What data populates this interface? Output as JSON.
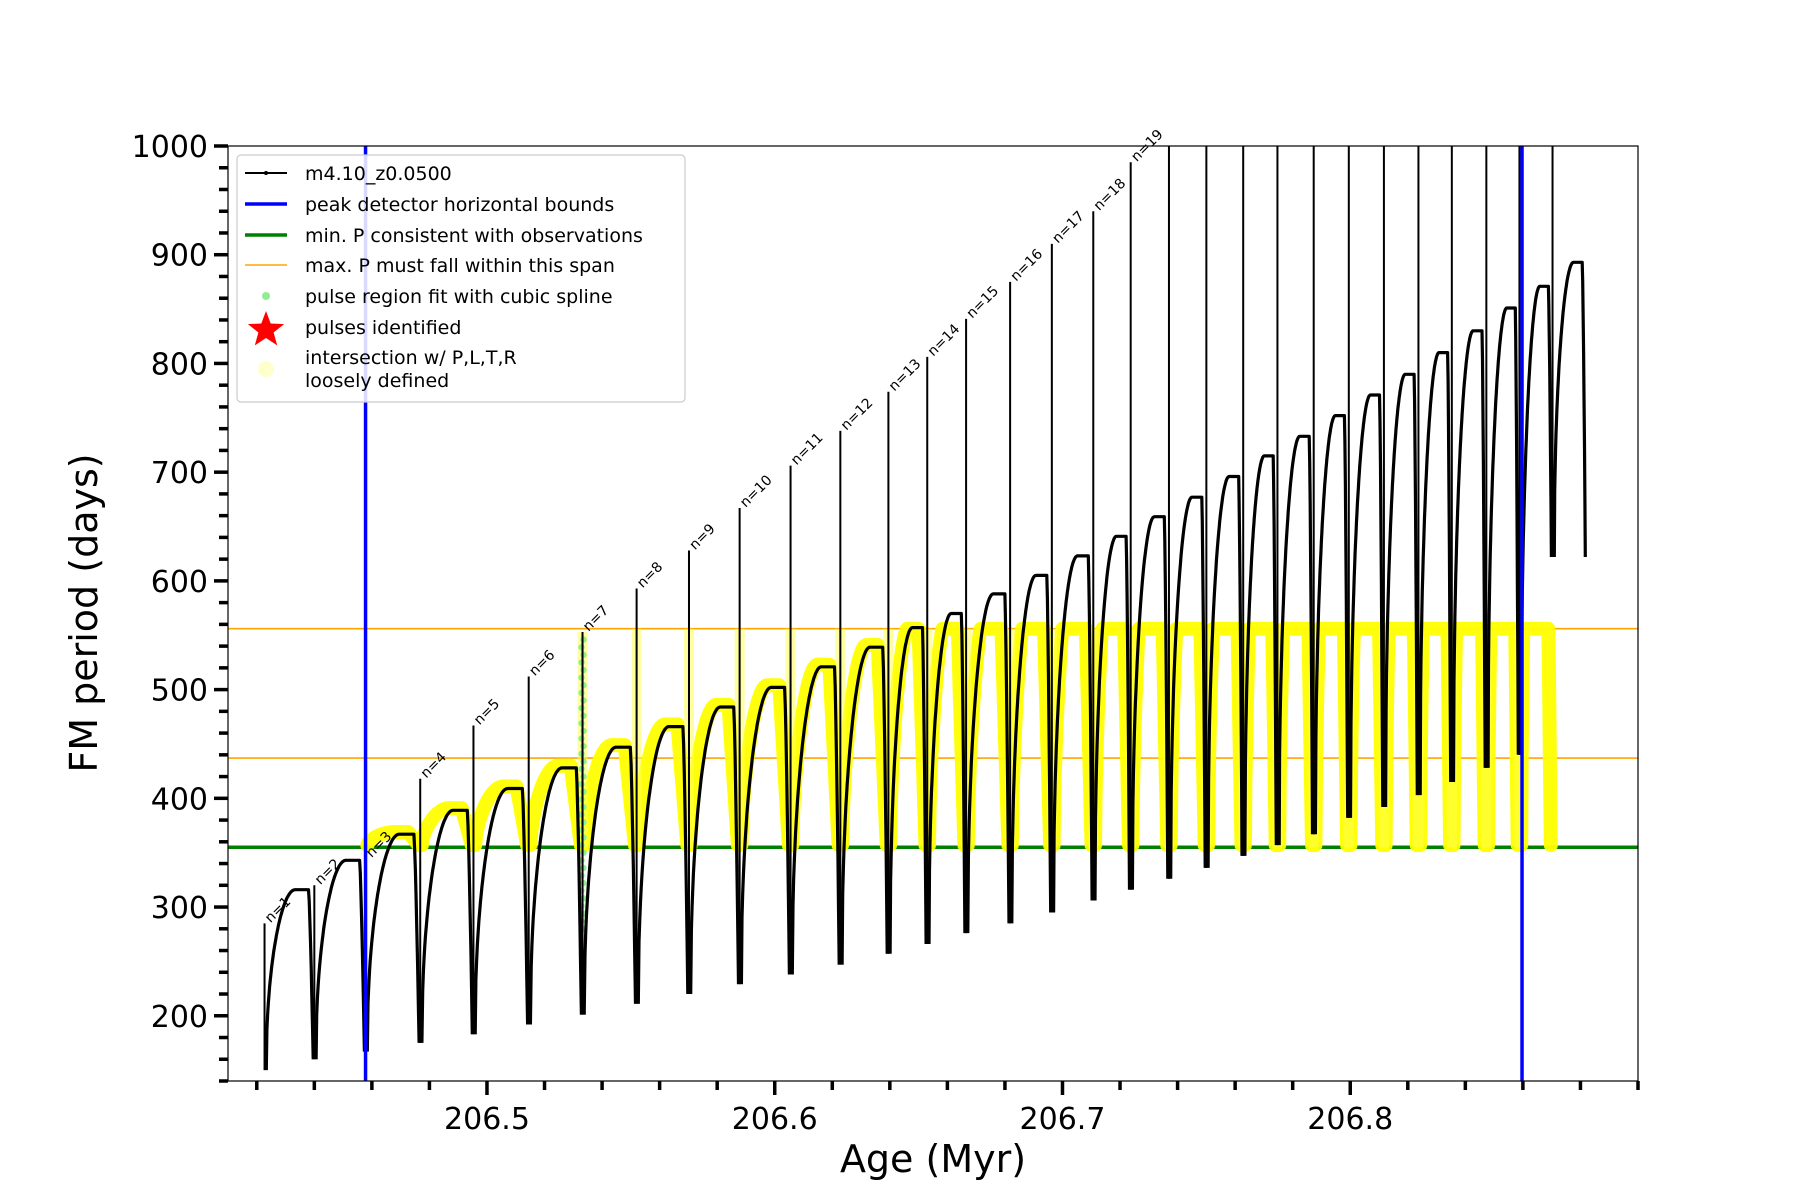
{
  "chart_data": {
    "type": "line",
    "xlabel": "Age (Myr)",
    "ylabel": "FM period (days)",
    "xlim": [
      206.41,
      206.9
    ],
    "ylim": [
      140,
      1000
    ],
    "x_ticks": [
      206.5,
      206.6,
      206.7,
      206.8
    ],
    "y_ticks": [
      200,
      300,
      400,
      500,
      600,
      700,
      800,
      900,
      1000
    ],
    "grid": false,
    "legend_placement": "upper-left",
    "legend": [
      {
        "label": "m4.10_z0.0500",
        "kind": "line-marker",
        "color": "#000000"
      },
      {
        "label": "peak detector horizontal bounds",
        "kind": "line",
        "color": "#0000ff"
      },
      {
        "label": "min. P consistent with observations",
        "kind": "line",
        "color": "#008000"
      },
      {
        "label": "max. P must fall within this span",
        "kind": "thin-line",
        "color": "#ffa500"
      },
      {
        "label": "pulse region fit with cubic spline",
        "kind": "dot",
        "color": "#90ee90"
      },
      {
        "label": "pulses identified",
        "kind": "star",
        "color": "#ff0000"
      },
      {
        "label": "intersection w/ P,L,T,R",
        "label_line2": "loosely defined",
        "kind": "big-dot",
        "color": "#ffffcc"
      }
    ],
    "vertical_lines": [
      {
        "x": 206.4578,
        "color": "#0000ff"
      },
      {
        "x": 206.8597,
        "color": "#0000ff"
      }
    ],
    "horizontal_lines": [
      {
        "y": 355,
        "color": "#008000"
      },
      {
        "y": 437,
        "color": "#ffa500"
      },
      {
        "y": 556,
        "color": "#ffa500"
      }
    ],
    "pulse_labels": [
      "n=1",
      "n=2",
      "n=3",
      "n=4",
      "n=5",
      "n=6",
      "n=7",
      "n=8",
      "n=9",
      "n=10",
      "n=11",
      "n=12",
      "n=13",
      "n=14",
      "n=15",
      "n=16",
      "n=17",
      "n=18",
      "n=19"
    ],
    "series": [
      {
        "name": "m4.10_z0.0500",
        "cycles": [
          {
            "start": 206.4227,
            "peak": 285,
            "min": 150,
            "max": 316
          },
          {
            "start": 206.44,
            "peak": 320,
            "min": 160,
            "max": 343
          },
          {
            "start": 206.4578,
            "peak": 345,
            "min": 167,
            "max": 367
          },
          {
            "start": 206.4768,
            "peak": 418,
            "min": 175,
            "max": 389
          },
          {
            "start": 206.4953,
            "peak": 467,
            "min": 183,
            "max": 409
          },
          {
            "start": 206.5145,
            "peak": 512,
            "min": 192,
            "max": 428
          },
          {
            "start": 206.5332,
            "peak": 553,
            "min": 201,
            "max": 447
          },
          {
            "start": 206.552,
            "peak": 593,
            "min": 211,
            "max": 466
          },
          {
            "start": 206.5702,
            "peak": 628,
            "min": 220,
            "max": 484
          },
          {
            "start": 206.5878,
            "peak": 667,
            "min": 229,
            "max": 502
          },
          {
            "start": 206.6055,
            "peak": 706,
            "min": 238,
            "max": 521
          },
          {
            "start": 206.6228,
            "peak": 738,
            "min": 247,
            "max": 539
          },
          {
            "start": 206.6395,
            "peak": 774,
            "min": 257,
            "max": 557
          },
          {
            "start": 206.653,
            "peak": 806,
            "min": 266,
            "max": 570
          },
          {
            "start": 206.6665,
            "peak": 841,
            "min": 276,
            "max": 588
          },
          {
            "start": 206.6818,
            "peak": 875,
            "min": 285,
            "max": 605
          },
          {
            "start": 206.6963,
            "peak": 910,
            "min": 295,
            "max": 623
          },
          {
            "start": 206.7107,
            "peak": 940,
            "min": 306,
            "max": 641
          },
          {
            "start": 206.7237,
            "peak": 985,
            "min": 316,
            "max": 659
          },
          {
            "start": 206.737,
            "peak": 1000,
            "min": 326,
            "max": 677
          },
          {
            "start": 206.75,
            "peak": 1000,
            "min": 336,
            "max": 696
          },
          {
            "start": 206.7628,
            "peak": 1000,
            "min": 347,
            "max": 715
          },
          {
            "start": 206.7747,
            "peak": 1000,
            "min": 357,
            "max": 733
          },
          {
            "start": 206.7873,
            "peak": 1000,
            "min": 367,
            "max": 752
          },
          {
            "start": 206.7995,
            "peak": 1000,
            "min": 382,
            "max": 771
          },
          {
            "start": 206.8117,
            "peak": 1000,
            "min": 392,
            "max": 790
          },
          {
            "start": 206.8237,
            "peak": 1000,
            "min": 403,
            "max": 810
          },
          {
            "start": 206.8353,
            "peak": 1000,
            "min": 415,
            "max": 830
          },
          {
            "start": 206.8473,
            "peak": 1000,
            "min": 428,
            "max": 851
          },
          {
            "start": 206.8588,
            "peak": 1000,
            "min": 440,
            "max": 871
          },
          {
            "start": 206.8703,
            "peak": 1000,
            "min": 622,
            "max": 893
          }
        ]
      }
    ]
  }
}
